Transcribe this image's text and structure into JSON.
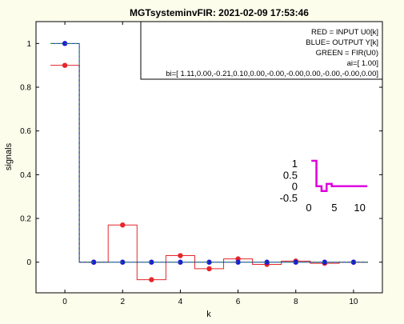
{
  "chart_data": {
    "type": "line",
    "title": "MGTsysteminvFIR: 2021-02-09 17:53:46",
    "xlabel": "k",
    "ylabel": "signals",
    "xlim": [
      -1,
      11
    ],
    "ylim": [
      -0.14,
      1.1
    ],
    "xticks": [
      "0",
      "2",
      "4",
      "6",
      "8",
      "10"
    ],
    "yticks": [
      "0",
      "0.2",
      "0.4",
      "0.6",
      "0.8",
      "1"
    ],
    "grid": false,
    "legend_placement": "top-right",
    "annotation_lines": [
      "RED = INPUT U0[k]",
      "BLUE= OUTPUT Y[k]",
      "GREEN = FIR(U0)",
      "ai=[ 1.00]",
      "bi=[ 1.11,0.00,-0.21,0.10,0.00,-0.00,-0.00,0.00,-0.00,-0.00,0.00]"
    ],
    "x": [
      0,
      1,
      2,
      3,
      4,
      5,
      6,
      7,
      8,
      9,
      10
    ],
    "series": [
      {
        "color": "#e6262a",
        "values": [
          0.9,
          0.0,
          0.17,
          -0.08,
          0.03,
          -0.03,
          0.015,
          -0.01,
          0.005,
          -0.005,
          0.0
        ]
      },
      {
        "color": "#1a1ad9",
        "values": [
          1.0,
          0,
          0,
          0,
          0,
          0,
          0,
          0,
          0,
          0,
          0
        ]
      },
      {
        "color": "#1aa51a",
        "values": [
          1.0,
          0,
          0,
          0,
          0,
          0,
          0,
          0,
          0,
          0,
          0
        ]
      }
    ],
    "inset": {
      "color": "#dd00dd",
      "xticks": [
        "0",
        "5",
        "10"
      ],
      "yticks": [
        "1",
        "0.5",
        "0",
        "-0.5"
      ],
      "xlim": [
        0,
        11
      ],
      "ylim": [
        -0.5,
        1.25
      ],
      "x": [
        1,
        2,
        3,
        4,
        5,
        6,
        7,
        8,
        9,
        10,
        11
      ],
      "values": [
        1.11,
        0.0,
        -0.21,
        0.1,
        0.0,
        0.0,
        0.0,
        0.0,
        0.0,
        0.0,
        0.0
      ]
    }
  }
}
